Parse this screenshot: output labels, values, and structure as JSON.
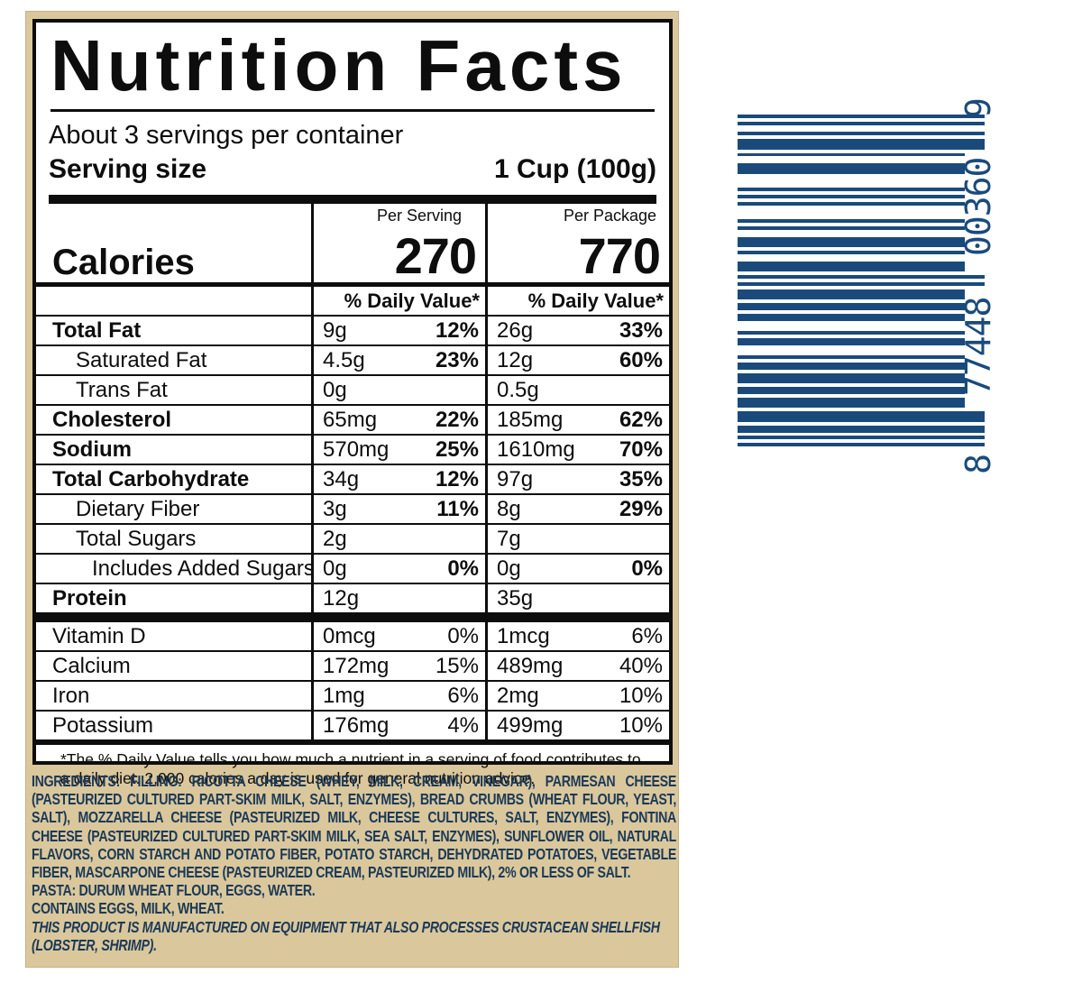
{
  "nutrition": {
    "title": "Nutrition Facts",
    "servings_per_container": "About 3 servings per container",
    "serving_size_label": "Serving size",
    "serving_size_value": "1 Cup (100g)",
    "per_serving_header": "Per Serving",
    "per_package_header": "Per Package",
    "calories_label": "Calories",
    "calories_per_serving": "270",
    "calories_per_package": "770",
    "daily_value_header_serving": "% Daily Value*",
    "daily_value_header_package": "% Daily Value*",
    "rows": [
      {
        "label": "Total Fat",
        "bold": true,
        "indent": 0,
        "serving_amount": "9g",
        "serving_dv": "12%",
        "package_amount": "26g",
        "package_dv": "33%"
      },
      {
        "label": "Saturated Fat",
        "bold": false,
        "indent": 1,
        "serving_amount": "4.5g",
        "serving_dv": "23%",
        "package_amount": "12g",
        "package_dv": "60%"
      },
      {
        "label": "Trans Fat",
        "bold": false,
        "indent": 1,
        "serving_amount": "0g",
        "serving_dv": "",
        "package_amount": "0.5g",
        "package_dv": ""
      },
      {
        "label": "Cholesterol",
        "bold": true,
        "indent": 0,
        "serving_amount": "65mg",
        "serving_dv": "22%",
        "package_amount": "185mg",
        "package_dv": "62%"
      },
      {
        "label": "Sodium",
        "bold": true,
        "indent": 0,
        "serving_amount": "570mg",
        "serving_dv": "25%",
        "package_amount": "1610mg",
        "package_dv": "70%"
      },
      {
        "label": "Total Carbohydrate",
        "bold": true,
        "indent": 0,
        "serving_amount": "34g",
        "serving_dv": "12%",
        "package_amount": "97g",
        "package_dv": "35%"
      },
      {
        "label": "Dietary Fiber",
        "bold": false,
        "indent": 1,
        "serving_amount": "3g",
        "serving_dv": "11%",
        "package_amount": "8g",
        "package_dv": "29%"
      },
      {
        "label": "Total Sugars",
        "bold": false,
        "indent": 1,
        "serving_amount": "2g",
        "serving_dv": "",
        "package_amount": "7g",
        "package_dv": ""
      },
      {
        "label": "Includes Added Sugars",
        "bold": false,
        "indent": 2,
        "serving_amount": "0g",
        "serving_dv": "0%",
        "package_amount": "0g",
        "package_dv": "0%"
      },
      {
        "label": "Protein",
        "bold": true,
        "indent": 0,
        "serving_amount": "12g",
        "serving_dv": "",
        "package_amount": "35g",
        "package_dv": ""
      }
    ],
    "vitamin_rows": [
      {
        "label": "Vitamin D",
        "serving_amount": "0mcg",
        "serving_dv": "0%",
        "package_amount": "1mcg",
        "package_dv": "6%"
      },
      {
        "label": "Calcium",
        "serving_amount": "172mg",
        "serving_dv": "15%",
        "package_amount": "489mg",
        "package_dv": "40%"
      },
      {
        "label": "Iron",
        "serving_amount": "1mg",
        "serving_dv": "6%",
        "package_amount": "2mg",
        "package_dv": "10%"
      },
      {
        "label": "Potassium",
        "serving_amount": "176mg",
        "serving_dv": "4%",
        "package_amount": "499mg",
        "package_dv": "10%"
      }
    ],
    "footnote_line1": "*The % Daily Value tells you how much a nutrient in a serving of food contributes to",
    "footnote_line2": "a daily diet. 2,000 calories a day is used for general nutrition advice."
  },
  "ingredients": {
    "heading": "INGREDIENTS:",
    "filling_label": "FILLING:",
    "filling_text": "RICOTTA CHEESE (WHEY, MILK, CREAM, VINEGAR), PARMESAN CHEESE (PASTEURIZED CULTURED PART-SKIM MILK, SALT, ENZYMES), BREAD CRUMBS (WHEAT FLOUR, YEAST, SALT), MOZZARELLA CHEESE (PASTEURIZED MILK, CHEESE CULTURES, SALT, ENZYMES), FONTINA CHEESE (PASTEURIZED CULTURED PART-SKIM MILK, SEA SALT, ENZYMES), SUNFLOWER OIL, NATURAL FLAVORS, CORN STARCH AND POTATO FIBER, POTATO STARCH, DEHYDRATED POTATOES, VEGETABLE FIBER, MASCARPONE CHEESE (PASTEURIZED CREAM, PASTEURIZED MILK), 2% OR LESS OF SALT.",
    "pasta_label": "PASTA:",
    "pasta_text": "DURUM WHEAT FLOUR, EGGS, WATER.",
    "contains": "CONTAINS EGGS, MILK, WHEAT.",
    "allergen_notice": "THIS PRODUCT IS MANUFACTURED ON EQUIPMENT THAT ALSO PROCESSES CRUSTACEAN SHELLFISH (LOBSTER, SHRIMP)."
  },
  "barcode": {
    "number_system_digit": "8",
    "left_group": "77448",
    "right_group": "00360",
    "check_digit": "9",
    "ink_color": "#1a4a7c"
  },
  "colors": {
    "label_background": "#dac79c",
    "panel_background": "#ffffff",
    "panel_ink": "#0d0d0d",
    "ingredient_ink": "#1b3a58",
    "barcode_ink": "#1a4a7c"
  }
}
